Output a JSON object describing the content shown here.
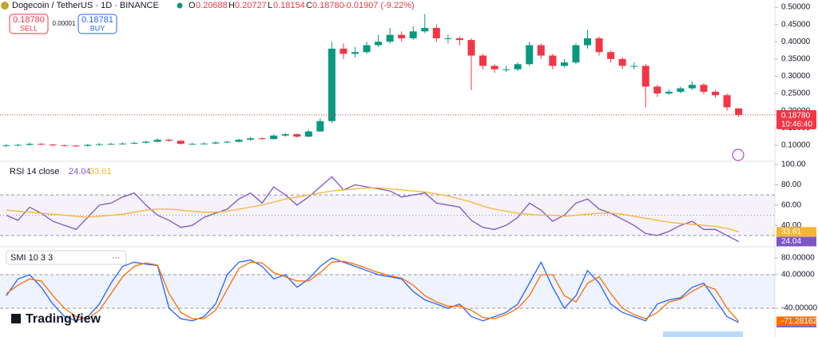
{
  "header": {
    "symbol": "Dogecoin / TetherUS · 1D · BINANCE",
    "o": "O",
    "h": "H",
    "l": "L",
    "c": "C",
    "change": "-0.01907 (-9.22%)",
    "sell_price": "0.18780",
    "sell": "SELL",
    "spread": "0.00001",
    "buy_price": "0.18781",
    "buy": "BUY",
    "price_tag": "0.18780",
    "countdown": "10:46:40",
    "brand": "TradingView"
  },
  "chart_data": [
    {
      "type": "candlestick",
      "up_color": "#089981",
      "down_color": "#f23645",
      "last_close_label": "0.18780",
      "ylim": [
        0.058,
        0.521
      ],
      "yticks": [
        {
          "value": 0.1,
          "label": "0.10000"
        },
        {
          "value": 0.15,
          "label": "0.15000"
        },
        {
          "value": 0.2,
          "label": "0.20000"
        },
        {
          "value": 0.25,
          "label": "0.25000"
        },
        {
          "value": 0.3,
          "label": "0.30000"
        },
        {
          "value": 0.35,
          "label": "0.35000"
        },
        {
          "value": 0.4,
          "label": "0.40000"
        },
        {
          "value": 0.45,
          "label": "0.45000"
        },
        {
          "value": 0.5,
          "label": "0.50000"
        }
      ],
      "open": [
        0.099,
        0.1,
        0.101,
        0.104,
        0.102,
        0.1,
        0.099,
        0.098,
        0.101,
        0.103,
        0.104,
        0.105,
        0.107,
        0.11,
        0.116,
        0.113,
        0.104,
        0.104,
        0.105,
        0.108,
        0.11,
        0.116,
        0.12,
        0.118,
        0.128,
        0.132,
        0.125,
        0.14,
        0.17,
        0.38,
        0.365,
        0.37,
        0.39,
        0.4,
        0.42,
        0.41,
        0.43,
        0.44,
        0.41,
        0.41,
        0.405,
        0.36,
        0.33,
        0.32,
        0.32,
        0.335,
        0.39,
        0.36,
        0.33,
        0.34,
        0.39,
        0.41,
        0.37,
        0.35,
        0.33,
        0.33,
        0.27,
        0.25,
        0.255,
        0.265,
        0.275,
        0.255,
        0.245,
        0.20688
      ],
      "high": [
        0.103,
        0.104,
        0.107,
        0.106,
        0.104,
        0.102,
        0.101,
        0.104,
        0.106,
        0.107,
        0.108,
        0.11,
        0.113,
        0.12,
        0.119,
        0.115,
        0.107,
        0.108,
        0.111,
        0.113,
        0.119,
        0.124,
        0.123,
        0.131,
        0.136,
        0.134,
        0.145,
        0.178,
        0.4,
        0.395,
        0.385,
        0.4,
        0.42,
        0.44,
        0.43,
        0.445,
        0.48,
        0.45,
        0.42,
        0.415,
        0.41,
        0.365,
        0.335,
        0.33,
        0.34,
        0.4,
        0.395,
        0.365,
        0.35,
        0.395,
        0.435,
        0.415,
        0.375,
        0.355,
        0.34,
        0.335,
        0.275,
        0.262,
        0.27,
        0.285,
        0.28,
        0.26,
        0.25,
        0.20727
      ],
      "low": [
        0.096,
        0.098,
        0.099,
        0.1,
        0.098,
        0.097,
        0.095,
        0.096,
        0.099,
        0.101,
        0.102,
        0.103,
        0.105,
        0.108,
        0.11,
        0.102,
        0.101,
        0.102,
        0.103,
        0.106,
        0.108,
        0.113,
        0.115,
        0.116,
        0.125,
        0.122,
        0.123,
        0.138,
        0.165,
        0.35,
        0.355,
        0.365,
        0.385,
        0.395,
        0.4,
        0.405,
        0.425,
        0.4,
        0.395,
        0.39,
        0.26,
        0.32,
        0.31,
        0.312,
        0.315,
        0.33,
        0.35,
        0.32,
        0.325,
        0.335,
        0.38,
        0.36,
        0.34,
        0.32,
        0.32,
        0.21,
        0.24,
        0.245,
        0.25,
        0.26,
        0.248,
        0.238,
        0.2,
        0.18154
      ],
      "close": [
        0.1,
        0.101,
        0.104,
        0.102,
        0.1,
        0.099,
        0.098,
        0.101,
        0.103,
        0.104,
        0.105,
        0.107,
        0.11,
        0.116,
        0.113,
        0.104,
        0.104,
        0.105,
        0.108,
        0.11,
        0.116,
        0.12,
        0.118,
        0.128,
        0.132,
        0.125,
        0.14,
        0.17,
        0.38,
        0.365,
        0.37,
        0.39,
        0.4,
        0.42,
        0.41,
        0.43,
        0.44,
        0.41,
        0.41,
        0.405,
        0.36,
        0.33,
        0.32,
        0.32,
        0.335,
        0.39,
        0.36,
        0.33,
        0.34,
        0.39,
        0.41,
        0.37,
        0.35,
        0.33,
        0.33,
        0.27,
        0.25,
        0.255,
        0.265,
        0.275,
        0.255,
        0.245,
        0.21,
        0.1878
      ]
    },
    {
      "type": "line",
      "title": "RSI 14 close",
      "ylim": [
        19.7,
        102.4
      ],
      "bands": [
        70,
        50,
        30
      ],
      "band_color": "#7e57c2",
      "yticks": [
        {
          "value": 40,
          "label": "40.00"
        },
        {
          "value": 60,
          "label": "60.00"
        },
        {
          "value": 80,
          "label": "80.00"
        },
        {
          "value": 100,
          "label": "100.00"
        }
      ],
      "series": [
        {
          "color": "#7e57c2",
          "values": [
            50,
            45,
            58,
            52,
            44,
            40,
            36,
            48,
            60,
            62,
            68,
            72,
            60,
            50,
            45,
            38,
            40,
            48,
            52,
            56,
            66,
            72,
            62,
            78,
            70,
            60,
            68,
            78,
            88,
            75,
            80,
            78,
            76,
            74,
            68,
            70,
            72,
            62,
            60,
            58,
            45,
            38,
            36,
            40,
            48,
            62,
            55,
            44,
            50,
            62,
            66,
            56,
            52,
            46,
            40,
            32,
            30,
            34,
            40,
            44,
            36,
            36,
            30,
            24.04
          ]
        },
        {
          "color": "#f5b533",
          "values": [
            55,
            54,
            53,
            52,
            51,
            50,
            49,
            48,
            49,
            50,
            51,
            53,
            55,
            56,
            56,
            55,
            54,
            53,
            53,
            54,
            56,
            58,
            60,
            63,
            66,
            68,
            70,
            72,
            74,
            75,
            76,
            77,
            77,
            76,
            75,
            74,
            73,
            71,
            69,
            66,
            63,
            59,
            56,
            54,
            52,
            51,
            50,
            50,
            49,
            50,
            51,
            52,
            52,
            51,
            49,
            47,
            45,
            43,
            42,
            41,
            40,
            39,
            37,
            33.61
          ]
        }
      ]
    },
    {
      "type": "line",
      "title": "SMI 10 3 3",
      "ylim": [
        -104.8,
        102.9
      ],
      "bands": [
        40,
        -40
      ],
      "band_color": "#2962ff",
      "yticks": [
        {
          "value": -40,
          "label": "-40.00000"
        },
        {
          "value": 40,
          "label": "40.00000"
        },
        {
          "value": 80,
          "label": "80.00000"
        }
      ],
      "series": [
        {
          "color": "#2962ff",
          "values": [
            -10,
            30,
            40,
            10,
            -30,
            -60,
            -70,
            -60,
            -30,
            20,
            60,
            70,
            65,
            62,
            -40,
            -65,
            -70,
            -60,
            -30,
            40,
            70,
            75,
            60,
            30,
            40,
            10,
            30,
            60,
            80,
            70,
            60,
            50,
            40,
            35,
            30,
            0,
            -20,
            -30,
            -40,
            -30,
            -60,
            -70,
            -60,
            -50,
            -30,
            20,
            70,
            10,
            -40,
            -10,
            50,
            20,
            -30,
            -50,
            -60,
            -70,
            -30,
            -20,
            -15,
            10,
            20,
            -20,
            -60,
            -73.93254
          ]
        },
        {
          "color": "#ff6d00",
          "values": [
            -5,
            15,
            30,
            25,
            -10,
            -40,
            -60,
            -65,
            -45,
            -5,
            35,
            60,
            68,
            63,
            -5,
            -50,
            -65,
            -65,
            -45,
            5,
            55,
            70,
            68,
            45,
            35,
            25,
            25,
            45,
            70,
            72,
            65,
            55,
            45,
            38,
            32,
            15,
            -10,
            -25,
            -35,
            -35,
            -45,
            -62,
            -65,
            -55,
            -40,
            -10,
            40,
            40,
            -10,
            -25,
            20,
            35,
            -5,
            -40,
            -55,
            -65,
            -50,
            -25,
            -18,
            0,
            15,
            5,
            -40,
            -71.28162
          ]
        }
      ]
    }
  ]
}
